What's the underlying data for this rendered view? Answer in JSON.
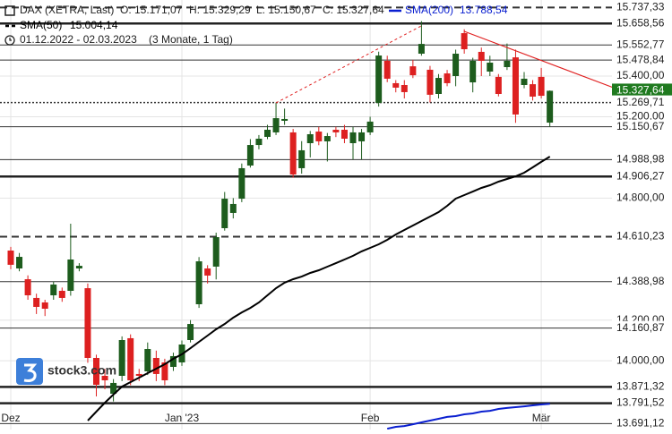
{
  "chart_data": {
    "type": "candlestick",
    "header": {
      "symbol": "DAX (XETRA, Last)",
      "ohlc": [
        "O: 15.171,07",
        "H: 15.329,29",
        "L: 15.150,67",
        "C: 15.327,64"
      ],
      "range": "01.12.2022 - 02.03.2023",
      "period": "(3 Monate, 1 Tag)"
    },
    "logo": "stock3.com",
    "categories": [
      "Dez",
      null,
      null,
      null,
      null,
      null,
      null,
      null,
      null,
      null,
      null,
      null,
      null,
      null,
      null,
      null,
      null,
      null,
      null,
      null,
      "Jan '23",
      null,
      null,
      null,
      null,
      null,
      null,
      null,
      null,
      null,
      null,
      null,
      null,
      null,
      null,
      null,
      null,
      null,
      null,
      null,
      null,
      null,
      "Feb",
      null,
      null,
      null,
      null,
      null,
      null,
      null,
      null,
      null,
      null,
      null,
      null,
      null,
      null,
      null,
      null,
      null,
      null,
      null,
      "Mär",
      null
    ],
    "open": [
      14542,
      14454,
      14401,
      14309,
      14287,
      14322,
      14344,
      14344,
      14454,
      14357,
      14014,
      13926,
      13838,
      13926,
      14111,
      13935,
      13948,
      14014,
      13992,
      13970,
      13992,
      14102,
      14278,
      14454,
      14463,
      14652,
      14727,
      14797,
      14960,
      15061,
      15101,
      15123,
      15180,
      15123,
      14947,
      15070,
      15127,
      15079,
      15136,
      15136,
      15070,
      15079,
      15123,
      15268,
      15475,
      15365,
      15356,
      15448,
      15510,
      15431,
      15312,
      15413,
      15400,
      15611,
      15369,
      15519,
      15422,
      15396,
      15444,
      15492,
      15356,
      15360,
      15396,
      15171.07
    ],
    "high": [
      14560,
      14530,
      14420,
      14330,
      14300,
      14390,
      14360,
      14674,
      14480,
      14380,
      14030,
      13960,
      13910,
      14120,
      14130,
      13960,
      14090,
      14050,
      14010,
      14040,
      14100,
      14200,
      14510,
      14470,
      14630,
      14830,
      14800,
      14970,
      15090,
      15110,
      15160,
      15270,
      15240,
      15140,
      15080,
      15130,
      15150,
      15120,
      15150,
      15160,
      15150,
      15140,
      15200,
      15520,
      15500,
      15380,
      15380,
      15480,
      15670,
      15450,
      15410,
      15430,
      15530,
      15630,
      15490,
      15540,
      15500,
      15410,
      15560,
      15530,
      15420,
      15380,
      15440,
      15329.29
    ],
    "low": [
      14450,
      14440,
      14300,
      14230,
      14220,
      14300,
      14290,
      14320,
      14440,
      13990,
      13825,
      13860,
      13800,
      13900,
      13880,
      13900,
      13930,
      13900,
      13880,
      13950,
      13975,
      14090,
      14260,
      14380,
      14400,
      14640,
      14700,
      14780,
      14950,
      15040,
      15090,
      15110,
      15160,
      14900,
      14920,
      15000,
      15060,
      14980,
      15100,
      15070,
      14990,
      14990,
      15110,
      15250,
      15370,
      15320,
      15290,
      15390,
      15500,
      15270,
      15290,
      15350,
      15350,
      15510,
      15320,
      15400,
      15400,
      15300,
      15430,
      15170,
      15340,
      15280,
      15290,
      15150.67
    ],
    "close": [
      14472,
      14511,
      14322,
      14265,
      14256,
      14375,
      14309,
      14498,
      14467,
      14014,
      13882,
      13904,
      13891,
      14102,
      13904,
      13926,
      14058,
      13935,
      13904,
      14023,
      14080,
      14181,
      14489,
      14419,
      14608,
      14797,
      14771,
      14947,
      15061,
      15092,
      15136,
      15193,
      15189,
      14916,
      15035,
      15114,
      15079,
      15105,
      15123,
      15092,
      15123,
      15123,
      15176,
      15501,
      15387,
      15343,
      15321,
      15404,
      15558,
      15308,
      15391,
      15365,
      15510,
      15532,
      15475,
      15475,
      15466,
      15312,
      15475,
      15211,
      15387,
      15299,
      15303,
      15327.64
    ],
    "up_color": "#1d5c1d",
    "down_color": "#dd2020",
    "series": [
      {
        "name": "SMA(200)",
        "color": "#0a1fd0",
        "last_label": "13.788,54",
        "values": [
          null,
          null,
          null,
          null,
          null,
          null,
          null,
          null,
          null,
          null,
          null,
          null,
          null,
          null,
          null,
          null,
          null,
          null,
          null,
          null,
          null,
          null,
          null,
          null,
          null,
          null,
          null,
          null,
          null,
          null,
          null,
          null,
          null,
          null,
          null,
          null,
          null,
          null,
          null,
          null,
          null,
          null,
          null,
          null,
          13666,
          13675,
          13679,
          13688,
          13697,
          13706,
          13715,
          13724,
          13728,
          13737,
          13741,
          13750,
          13754,
          13763,
          13768,
          13772,
          13776,
          13781,
          13785,
          13788.54
        ]
      },
      {
        "name": "SMA(50)",
        "color": "#000000",
        "last_label": "15.004,14",
        "values": [
          null,
          null,
          null,
          null,
          null,
          null,
          null,
          null,
          null,
          13706,
          13750,
          13794,
          13834,
          13873,
          13895,
          13917,
          13939,
          13961,
          13983,
          14010,
          14032,
          14062,
          14093,
          14124,
          14155,
          14181,
          14212,
          14238,
          14260,
          14287,
          14322,
          14357,
          14384,
          14401,
          14414,
          14432,
          14445,
          14463,
          14480,
          14498,
          14516,
          14538,
          14555,
          14573,
          14595,
          14621,
          14643,
          14665,
          14687,
          14709,
          14731,
          14762,
          14797,
          14815,
          14832,
          14850,
          14863,
          14881,
          14894,
          14907,
          14925,
          14951,
          14978,
          15004.14
        ]
      }
    ],
    "levels": [
      {
        "value": 15737.33,
        "label": "15.737,33",
        "style": "dashed"
      },
      {
        "value": 15658.56,
        "label": "15.658,56",
        "style": "thick"
      },
      {
        "value": 15552.77,
        "label": "15.552,77",
        "style": "thin"
      },
      {
        "value": 15478.84,
        "label": "15.478,84",
        "style": "thin"
      },
      {
        "value": 15327.64,
        "label": "15.327,64",
        "style": "current"
      },
      {
        "value": 15269.71,
        "label": "15.269,71",
        "style": "dotted"
      },
      {
        "value": 15150.67,
        "label": "15.150,67",
        "style": "thin"
      },
      {
        "value": 14988.98,
        "label": "14.988,98",
        "style": "thin"
      },
      {
        "value": 14906.27,
        "label": "14.906,27",
        "style": "thick"
      },
      {
        "value": 14610.23,
        "label": "14.610,23",
        "style": "dashed"
      },
      {
        "value": 14388.98,
        "label": "14.388,98",
        "style": "thin"
      },
      {
        "value": 14160.87,
        "label": "14.160,87",
        "style": "thin"
      },
      {
        "value": 13871.32,
        "label": "13.871,32",
        "style": "thick"
      },
      {
        "value": 13791.52,
        "label": "13.791,52",
        "style": "thick"
      },
      {
        "value": 13691.12,
        "label": "13.691,12",
        "style": "thin"
      }
    ],
    "ylim": [
      13662,
      15774
    ],
    "yticks": [
      {
        "value": 15400,
        "label": "15.400,00"
      },
      {
        "value": 15200,
        "label": "15.200,00"
      },
      {
        "value": 14800,
        "label": "14.800,00"
      },
      {
        "value": 14200,
        "label": "14.200,00"
      },
      {
        "value": 14000,
        "label": "14.000,00"
      }
    ],
    "grid": true
  }
}
